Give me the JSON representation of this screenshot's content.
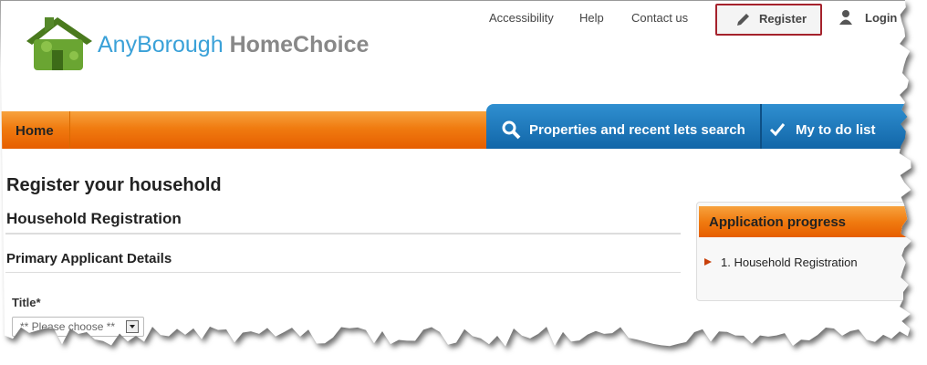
{
  "header": {
    "logo": {
      "first": "AnyBorough",
      "second": "HomeChoice"
    },
    "links": [
      "Accessibility",
      "Help",
      "Contact us"
    ],
    "register": "Register",
    "login": "Login"
  },
  "nav": {
    "home": "Home",
    "search": "Properties and recent lets search",
    "todo": "My to do list"
  },
  "main": {
    "title": "Register your household",
    "section": "Household Registration",
    "subsection": "Primary Applicant Details",
    "field": {
      "label": "Title*",
      "placeholder": "** Please choose **"
    }
  },
  "sidebar": {
    "title": "Application progress",
    "steps": [
      "1. Household Registration"
    ]
  }
}
